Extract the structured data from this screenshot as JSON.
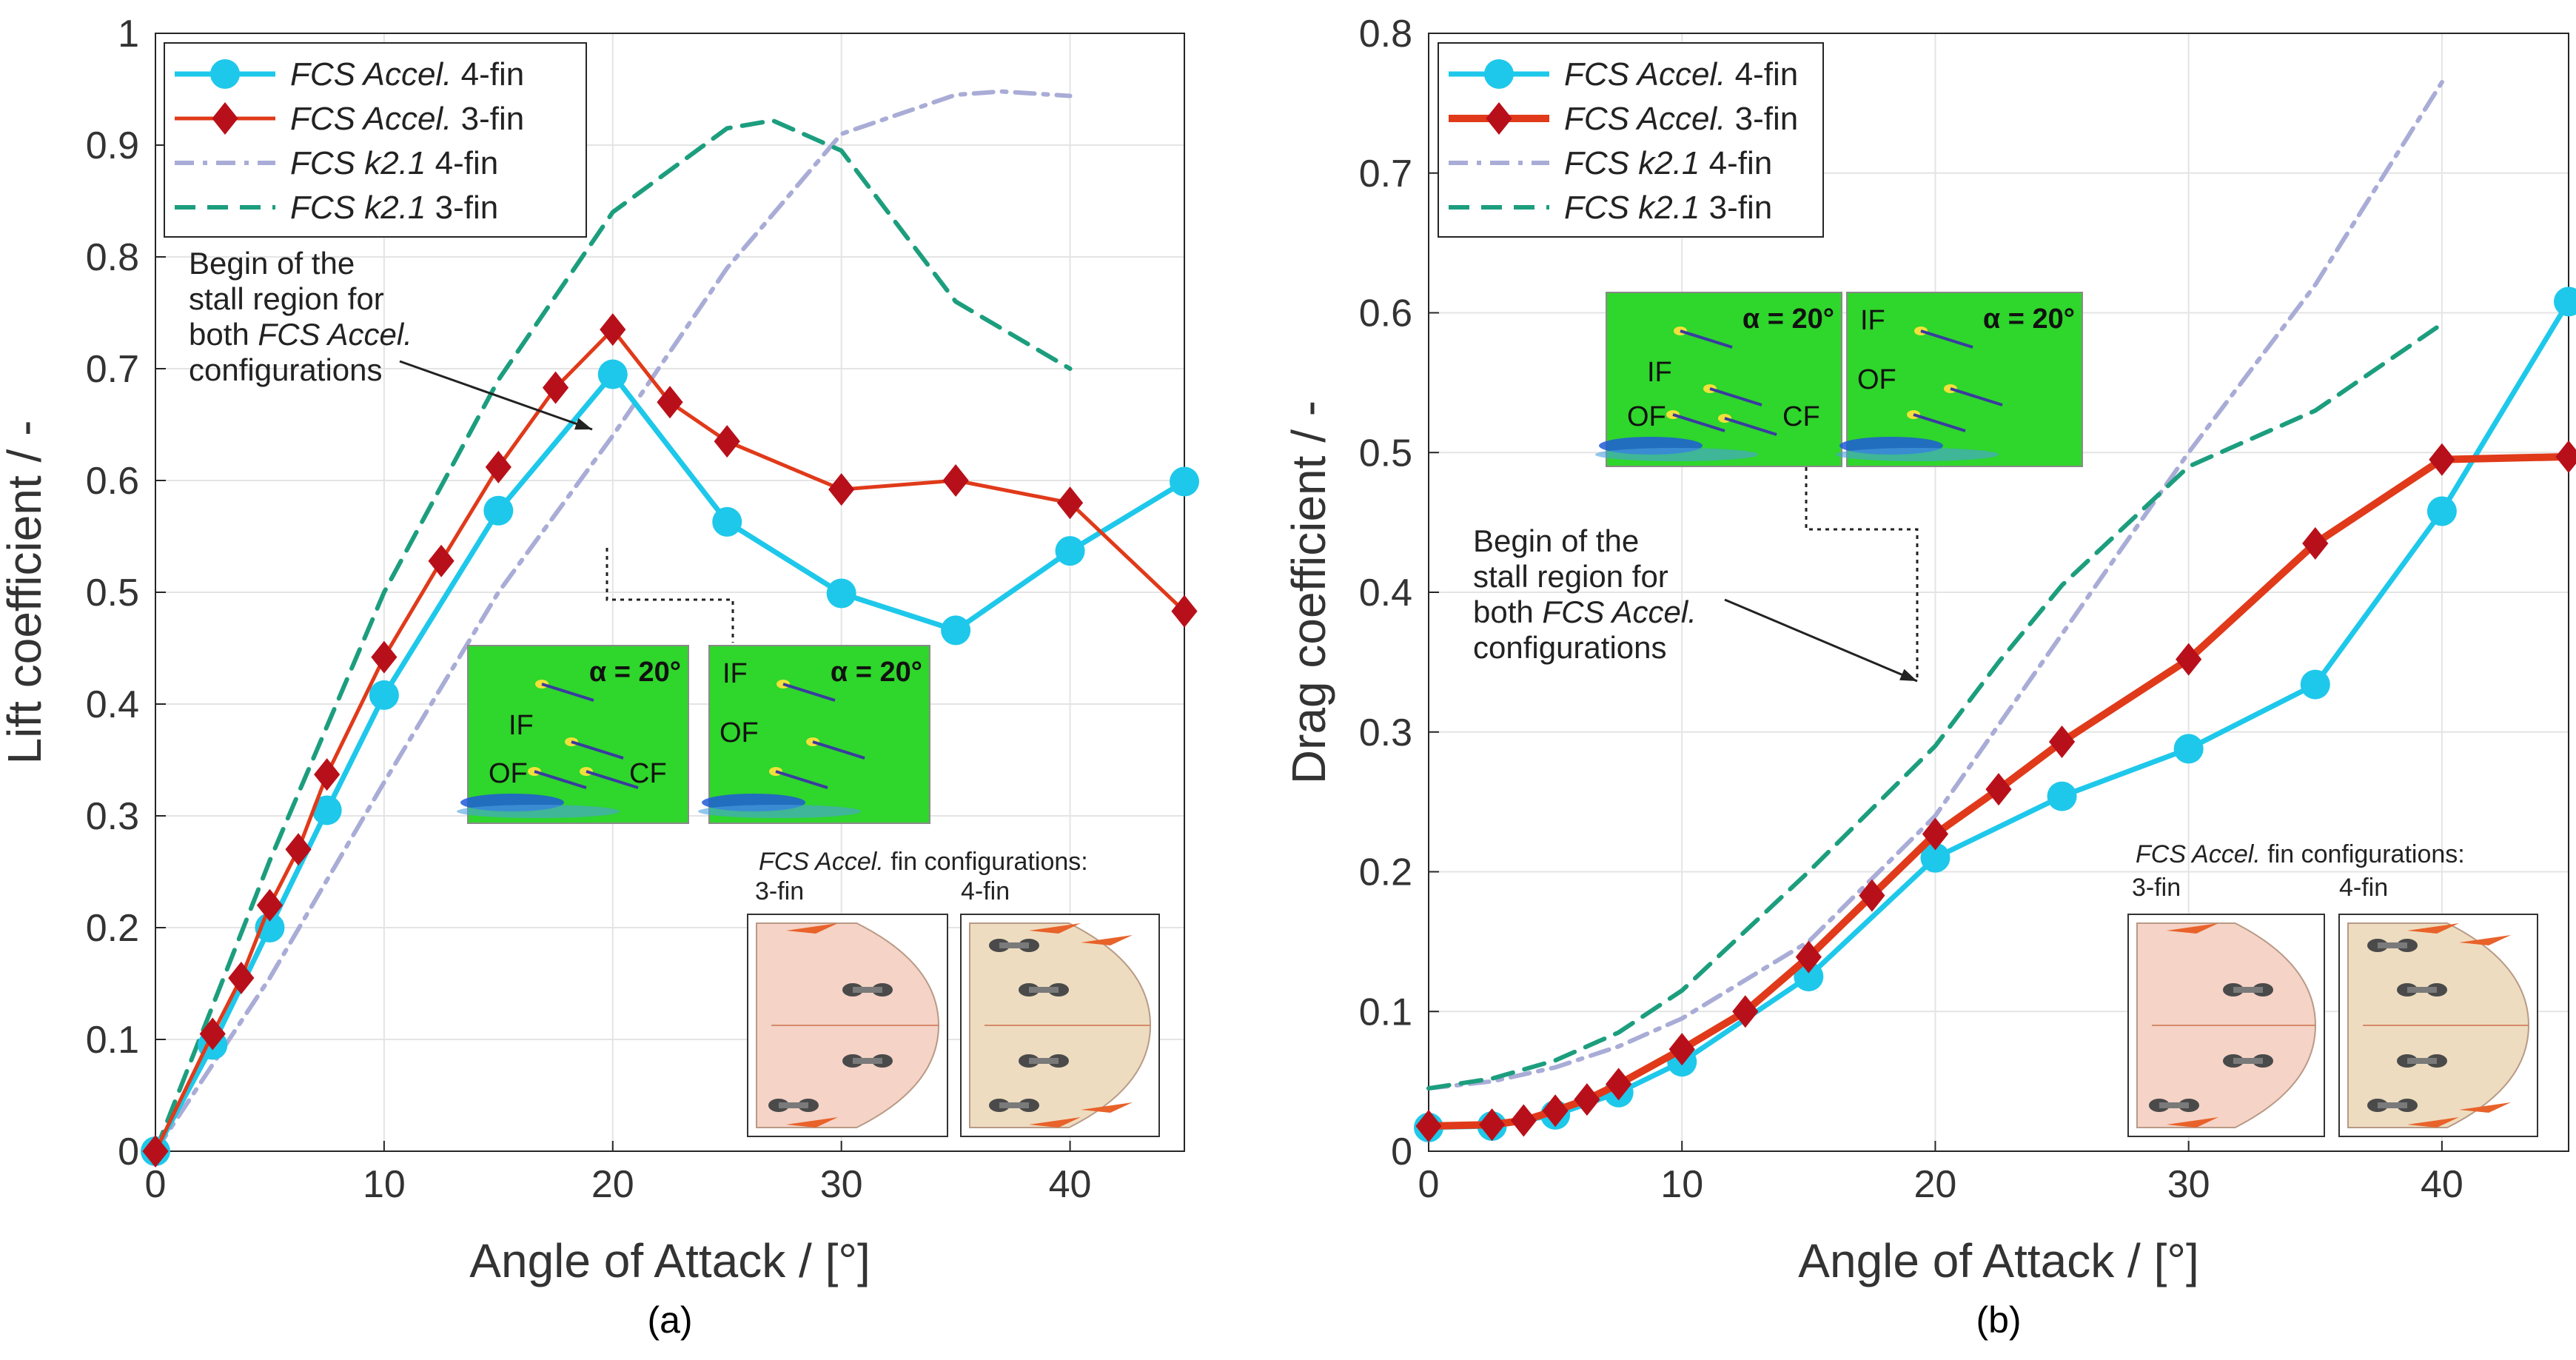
{
  "figure": {
    "colors": {
      "fcs_accel_4fin": "#1ec8ea",
      "fcs_accel_3fin": "#e03a1a",
      "fcs_accel_3fin_marker": "#b8101a",
      "k21_4fin": "#a9acd6",
      "k21_3fin": "#1c9e7e",
      "grid": "#e4e4e4",
      "cfd_green": "#2fd62b"
    }
  },
  "chart_data": [
    {
      "id": "a",
      "type": "line",
      "panel_label": "(a)",
      "xlabel": "Angle of Attack / [°]",
      "ylabel": "Lift coefficient / -",
      "xlim": [
        0,
        45
      ],
      "ylim": [
        0,
        1
      ],
      "xticks": [
        0,
        10,
        20,
        30,
        40
      ],
      "yticks": [
        0,
        0.1,
        0.2,
        0.3,
        0.4,
        0.5,
        0.6,
        0.7,
        0.8,
        0.9,
        1
      ],
      "ytick_labels": [
        "0",
        "0.1",
        "0.2",
        "0.3",
        "0.4",
        "0.5",
        "0.6",
        "0.7",
        "0.8",
        "0.9",
        "1"
      ],
      "grid": true,
      "legend_position": "top-left",
      "series": [
        {
          "name_italic": "FCS Accel.",
          "name_rest": " 4-fin",
          "style": "fcs4",
          "x": [
            0,
            2.5,
            5,
            7.5,
            10,
            15,
            20,
            25,
            30,
            35,
            40,
            45
          ],
          "y": [
            0,
            0.095,
            0.2,
            0.305,
            0.408,
            0.573,
            0.695,
            0.563,
            0.499,
            0.466,
            0.537,
            0.599
          ]
        },
        {
          "name_italic": "FCS Accel.",
          "name_rest": " 3-fin",
          "style": "fcs3",
          "x": [
            0,
            2.5,
            3.75,
            5,
            6.25,
            7.5,
            10,
            12.5,
            15,
            17.5,
            20,
            22.5,
            25,
            30,
            35,
            40,
            45
          ],
          "y": [
            0,
            0.105,
            0.155,
            0.22,
            0.27,
            0.337,
            0.442,
            0.528,
            0.612,
            0.683,
            0.735,
            0.67,
            0.635,
            0.592,
            0.6,
            0.58,
            0.483
          ]
        },
        {
          "name_italic": "FCS k2.1",
          "name_rest": " 4-fin",
          "style": "k4",
          "x": [
            0,
            5,
            10,
            15,
            20,
            25,
            30,
            35,
            37,
            40
          ],
          "y": [
            0,
            0.155,
            0.33,
            0.5,
            0.64,
            0.79,
            0.91,
            0.945,
            0.948,
            0.944
          ]
        },
        {
          "name_italic": "FCS k2.1",
          "name_rest": " 3-fin",
          "style": "k3",
          "x": [
            0,
            5,
            10,
            15,
            20,
            25,
            27,
            30,
            35,
            40
          ],
          "y": [
            0,
            0.26,
            0.5,
            0.69,
            0.84,
            0.915,
            0.922,
            0.895,
            0.76,
            0.7
          ]
        }
      ],
      "annotations": {
        "stall_text": [
          "Begin of the",
          "stall region for",
          "both FCS Accel.",
          "configurations"
        ],
        "cfd_labels": {
          "angle": "α = 20°",
          "inner_fin": "IF",
          "outer_fin": "OF",
          "center_fin": "CF"
        },
        "config_title": "FCS Accel. fin configurations:",
        "config_3fin": "3-fin",
        "config_4fin": "4-fin"
      }
    },
    {
      "id": "b",
      "type": "line",
      "panel_label": "(b)",
      "xlabel": "Angle of Attack / [°]",
      "ylabel": "Drag coefficient / -",
      "xlim": [
        0,
        45
      ],
      "ylim": [
        0,
        0.8
      ],
      "xticks": [
        0,
        10,
        20,
        30,
        40
      ],
      "yticks": [
        0,
        0.1,
        0.2,
        0.3,
        0.4,
        0.5,
        0.6,
        0.7,
        0.8
      ],
      "ytick_labels": [
        "0",
        "0.1",
        "0.2",
        "0.3",
        "0.4",
        "0.5",
        "0.6",
        "0.7",
        "0.8"
      ],
      "grid": true,
      "legend_position": "top-left",
      "series": [
        {
          "name_italic": "FCS Accel.",
          "name_rest": " 4-fin",
          "style": "fcs4",
          "x": [
            0,
            2.5,
            5,
            7.5,
            10,
            15,
            20,
            25,
            30,
            35,
            40,
            45
          ],
          "y": [
            0.017,
            0.018,
            0.026,
            0.042,
            0.064,
            0.125,
            0.21,
            0.254,
            0.288,
            0.334,
            0.458,
            0.608
          ]
        },
        {
          "name_italic": "FCS Accel.",
          "name_rest": " 3-fin",
          "style": "fcs3bold",
          "x": [
            0,
            2.5,
            3.75,
            5,
            6.25,
            7.5,
            10,
            12.5,
            15,
            17.5,
            20,
            22.5,
            25,
            30,
            35,
            40,
            45
          ],
          "y": [
            0.018,
            0.019,
            0.022,
            0.029,
            0.037,
            0.048,
            0.073,
            0.1,
            0.139,
            0.183,
            0.227,
            0.259,
            0.293,
            0.352,
            0.435,
            0.495,
            0.497
          ]
        },
        {
          "name_italic": "FCS k2.1",
          "name_rest": " 4-fin",
          "style": "k4",
          "x": [
            0,
            2.5,
            5,
            7.5,
            10,
            15,
            20,
            25,
            30,
            35,
            40
          ],
          "y": [
            0.045,
            0.05,
            0.06,
            0.075,
            0.095,
            0.15,
            0.24,
            0.37,
            0.5,
            0.62,
            0.765
          ]
        },
        {
          "name_italic": "FCS k2.1",
          "name_rest": " 3-fin",
          "style": "k3",
          "x": [
            0,
            2.5,
            5,
            7.5,
            10,
            15,
            20,
            22.5,
            25,
            30,
            35,
            40
          ],
          "y": [
            0.045,
            0.052,
            0.065,
            0.085,
            0.115,
            0.2,
            0.29,
            0.35,
            0.405,
            0.49,
            0.53,
            0.592
          ]
        }
      ],
      "annotations": {
        "stall_text": [
          "Begin of the",
          "stall region for",
          "both FCS Accel.",
          "configurations"
        ],
        "cfd_labels": {
          "angle": "α = 20°",
          "inner_fin": "IF",
          "outer_fin": "OF",
          "center_fin": "CF"
        },
        "config_title": "FCS Accel. fin configurations:",
        "config_3fin": "3-fin",
        "config_4fin": "4-fin"
      }
    }
  ]
}
